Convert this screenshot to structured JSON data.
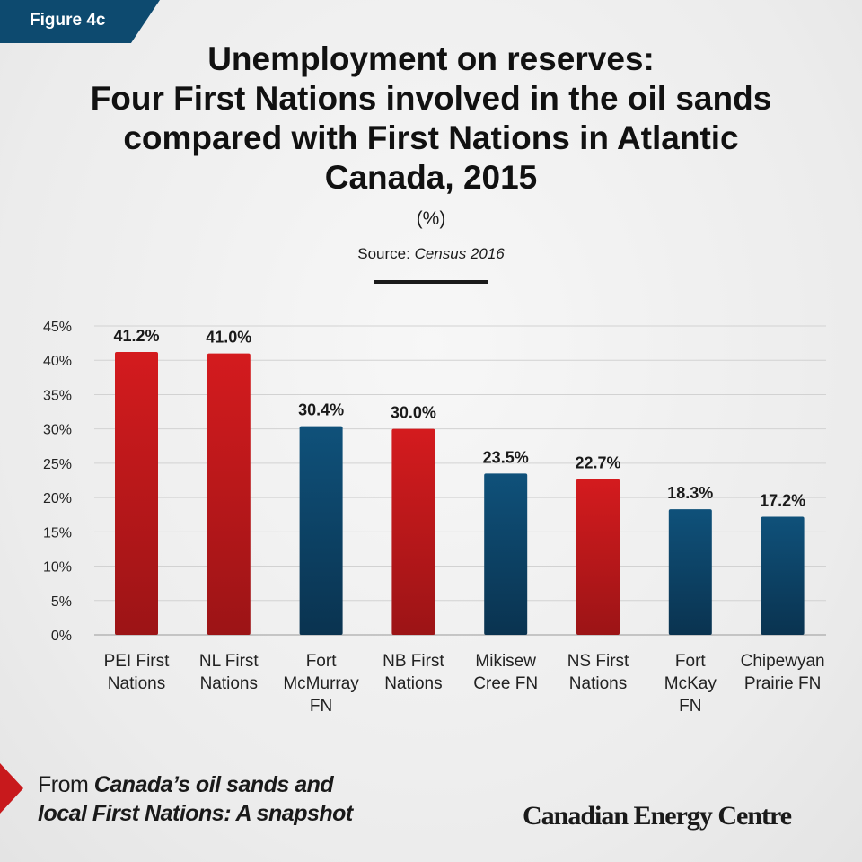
{
  "figure_tag": "Figure 4c",
  "title_lines": [
    "Unemployment on reserves:",
    "Four First Nations involved in the oil sands",
    "compared with First Nations in Atlantic",
    "Canada, 2015"
  ],
  "unit": "(%)",
  "source_label": "Source:",
  "source_value": "Census 2016",
  "footer": {
    "prefix": "From",
    "line1_italic": "Canada’s oil sands and",
    "line2_italic": "local First Nations: A snapshot"
  },
  "brand": "Canadian Energy Centre",
  "colors": {
    "atlantic": "#c8191c",
    "oil_sands": "#0d4a6f"
  },
  "chart_data": {
    "type": "bar",
    "categories": [
      [
        "PEI First",
        "Nations"
      ],
      [
        "NL First",
        "Nations"
      ],
      [
        "Fort",
        "McMurray",
        "FN"
      ],
      [
        "NB First",
        "Nations"
      ],
      [
        "Mikisew",
        "Cree FN"
      ],
      [
        "NS First",
        "Nations"
      ],
      [
        "Fort",
        "McKay",
        "FN"
      ],
      [
        "Chipewyan",
        "Prairie FN"
      ]
    ],
    "values": [
      41.2,
      41.0,
      30.4,
      30.0,
      23.5,
      22.7,
      18.3,
      17.2
    ],
    "data_labels": [
      "41.2%",
      "41.0%",
      "30.4%",
      "30.0%",
      "23.5%",
      "22.7%",
      "18.3%",
      "17.2%"
    ],
    "bar_colors": [
      "atlantic",
      "atlantic",
      "oil_sands",
      "atlantic",
      "oil_sands",
      "atlantic",
      "oil_sands",
      "oil_sands"
    ],
    "yticks": [
      "0%",
      "5%",
      "10%",
      "15%",
      "20%",
      "25%",
      "30%",
      "35%",
      "40%",
      "45%"
    ],
    "ylim": [
      0,
      45
    ],
    "grid": true
  }
}
